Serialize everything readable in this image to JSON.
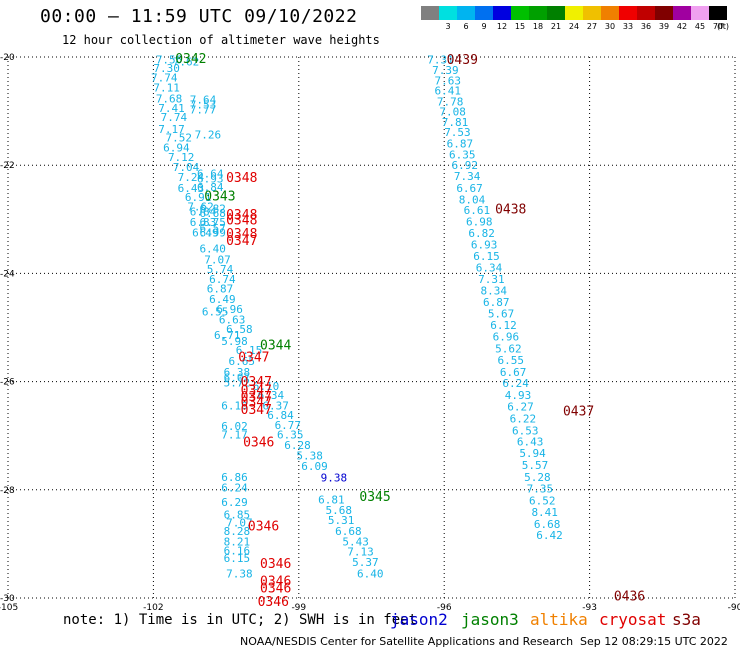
{
  "header": {
    "title": "00:00 – 11:59 UTC 09/10/2022",
    "subtitle": "12 hour collection of altimeter wave heights"
  },
  "legend": {
    "unit": "(ft)",
    "bins": [
      {
        "label": "",
        "color": "#808080"
      },
      {
        "label": "3",
        "color": "#00e0e0"
      },
      {
        "label": "6",
        "color": "#00b4f0"
      },
      {
        "label": "9",
        "color": "#0070f0"
      },
      {
        "label": "12",
        "color": "#0000e0"
      },
      {
        "label": "15",
        "color": "#00c000"
      },
      {
        "label": "18",
        "color": "#00a000"
      },
      {
        "label": "21",
        "color": "#008000"
      },
      {
        "label": "24",
        "color": "#f0f000"
      },
      {
        "label": "27",
        "color": "#f0c000"
      },
      {
        "label": "30",
        "color": "#f08000"
      },
      {
        "label": "33",
        "color": "#f00000"
      },
      {
        "label": "36",
        "color": "#c00000"
      },
      {
        "label": "39",
        "color": "#800000"
      },
      {
        "label": "42",
        "color": "#a000a0"
      },
      {
        "label": "45",
        "color": "#f0a0f0"
      },
      {
        "label": "70",
        "color": "#000000"
      }
    ]
  },
  "footer": {
    "note": "note: 1) Time is in UTC; 2) SWH is in feet",
    "satellites": [
      {
        "name": "jason2",
        "color": "#0000d0"
      },
      {
        "name": "jason3",
        "color": "#008000"
      },
      {
        "name": "altika",
        "color": "#f08000"
      },
      {
        "name": "cryosat",
        "color": "#e00000"
      },
      {
        "name": "s3a",
        "color": "#800000"
      }
    ],
    "credit": "NOAA/NESDIS Center for Satellite Applications and Research",
    "timestamp": "Sep 12 08:29:15 UTC 2022"
  },
  "chart_data": {
    "type": "scatter",
    "xlim": [
      -105,
      -90
    ],
    "ylim": [
      -30,
      -20
    ],
    "xticks": [
      -105,
      -102,
      -99,
      -96,
      -93,
      -90
    ],
    "xtick_labels": [
      "-105",
      "-102",
      "-99",
      "-96",
      "-93",
      "-90"
    ],
    "yticks": [
      -20,
      -22,
      -24,
      -26,
      -28,
      -30
    ],
    "ytick_labels": [
      "-20",
      "-22",
      "-24",
      "-26",
      "-28",
      "-30"
    ],
    "grid": true,
    "colors": {
      "swh": "#18b4e6",
      "s3a": "#800000",
      "cryosat": "#e00000",
      "jason3": "#008000",
      "jason2": "#0000d0"
    },
    "tracks": [
      {
        "name": "track-left",
        "color": "#18b4e6",
        "points": [
          {
            "lon": -101.95,
            "lat": -20.05,
            "v": "7.56"
          },
          {
            "lon": -101.6,
            "lat": -20.08,
            "v": "7.62"
          },
          {
            "lon": -102.0,
            "lat": -20.2,
            "v": "7.30"
          },
          {
            "lon": -102.05,
            "lat": -20.38,
            "v": "7.74"
          },
          {
            "lon": -102.0,
            "lat": -20.56,
            "v": "7.11"
          },
          {
            "lon": -101.95,
            "lat": -20.77,
            "v": "7.68"
          },
          {
            "lon": -101.9,
            "lat": -20.94,
            "v": "7.41"
          },
          {
            "lon": -101.85,
            "lat": -21.11,
            "v": "7.74"
          },
          {
            "lon": -101.9,
            "lat": -21.33,
            "v": "7.17"
          },
          {
            "lon": -101.75,
            "lat": -21.49,
            "v": "7.52"
          },
          {
            "lon": -101.8,
            "lat": -21.67,
            "v": "6.94"
          },
          {
            "lon": -101.7,
            "lat": -21.85,
            "v": "7.12"
          },
          {
            "lon": -101.6,
            "lat": -22.03,
            "v": "7.04"
          },
          {
            "lon": -101.5,
            "lat": -22.22,
            "v": "7.24"
          },
          {
            "lon": -101.5,
            "lat": -22.42,
            "v": "6.43"
          },
          {
            "lon": -101.35,
            "lat": -22.59,
            "v": "6.91"
          },
          {
            "lon": -101.3,
            "lat": -22.76,
            "v": "7.62"
          },
          {
            "lon": -101.25,
            "lat": -22.86,
            "v": "6.84"
          },
          {
            "lon": -101.25,
            "lat": -23.05,
            "v": "6.83"
          },
          {
            "lon": -101.2,
            "lat": -23.24,
            "v": "6.49"
          },
          {
            "lon": -101.05,
            "lat": -23.54,
            "v": "6.40"
          },
          {
            "lon": -100.95,
            "lat": -23.74,
            "v": "7.07"
          },
          {
            "lon": -100.9,
            "lat": -23.92,
            "v": "5.74"
          },
          {
            "lon": -100.85,
            "lat": -24.1,
            "v": "6.74"
          },
          {
            "lon": -100.9,
            "lat": -24.28,
            "v": "6.87"
          },
          {
            "lon": -100.85,
            "lat": -24.47,
            "v": "6.49"
          },
          {
            "lon": -100.7,
            "lat": -24.66,
            "v": "6.96"
          },
          {
            "lon": -100.65,
            "lat": -24.85,
            "v": "6.63"
          },
          {
            "lon": -100.5,
            "lat": -25.03,
            "v": "6.58"
          },
          {
            "lon": -100.75,
            "lat": -25.14,
            "v": "6.71"
          },
          {
            "lon": -100.6,
            "lat": -25.25,
            "v": "5.98"
          },
          {
            "lon": -100.3,
            "lat": -25.42,
            "v": "6.15"
          },
          {
            "lon": -100.45,
            "lat": -25.62,
            "v": "6.65"
          },
          {
            "lon": -100.55,
            "lat": -25.82,
            "v": "6.38"
          },
          {
            "lon": -100.55,
            "lat": -25.92,
            "v": "6.07"
          },
          {
            "lon": -100.55,
            "lat": -26.02,
            "v": "5.72"
          },
          {
            "lon": -99.95,
            "lat": -26.08,
            "v": "6.10"
          },
          {
            "lon": -99.85,
            "lat": -26.25,
            "v": "6.34"
          },
          {
            "lon": -99.75,
            "lat": -26.44,
            "v": "6.37"
          },
          {
            "lon": -99.65,
            "lat": -26.62,
            "v": "6.84"
          },
          {
            "lon": -100.6,
            "lat": -26.44,
            "v": "6.10"
          },
          {
            "lon": -99.5,
            "lat": -26.8,
            "v": "6.77"
          },
          {
            "lon": -100.6,
            "lat": -26.82,
            "v": "6.02"
          },
          {
            "lon": -100.6,
            "lat": -26.98,
            "v": "7.17"
          },
          {
            "lon": -99.45,
            "lat": -26.98,
            "v": "6.35"
          },
          {
            "lon": -99.3,
            "lat": -27.17,
            "v": "6.28"
          },
          {
            "lon": -99.05,
            "lat": -27.37,
            "v": "5.38"
          },
          {
            "lon": -98.95,
            "lat": -27.56,
            "v": "6.09"
          },
          {
            "lon": -100.6,
            "lat": -27.76,
            "v": "6.86"
          },
          {
            "lon": -100.6,
            "lat": -27.96,
            "v": "6.24"
          },
          {
            "lon": -100.6,
            "lat": -28.23,
            "v": "6.29"
          },
          {
            "lon": -98.6,
            "lat": -28.18,
            "v": "6.81"
          },
          {
            "lon": -98.45,
            "lat": -28.37,
            "v": "5.68"
          },
          {
            "lon": -98.4,
            "lat": -28.56,
            "v": "5.31"
          },
          {
            "lon": -100.55,
            "lat": -28.46,
            "v": "6.85"
          },
          {
            "lon": -100.5,
            "lat": -28.6,
            "v": "7.07"
          },
          {
            "lon": -100.55,
            "lat": -28.76,
            "v": "8.28"
          },
          {
            "lon": -98.25,
            "lat": -28.76,
            "v": "6.68"
          },
          {
            "lon": -100.55,
            "lat": -28.96,
            "v": "8.21"
          },
          {
            "lon": -98.1,
            "lat": -28.96,
            "v": "5.43"
          },
          {
            "lon": -100.55,
            "lat": -29.12,
            "v": "6.16"
          },
          {
            "lon": -98.0,
            "lat": -29.14,
            "v": "7.13"
          },
          {
            "lon": -100.55,
            "lat": -29.26,
            "v": "6.15"
          },
          {
            "lon": -97.9,
            "lat": -29.33,
            "v": "5.37"
          },
          {
            "lon": -100.5,
            "lat": -29.55,
            "v": "7.38"
          },
          {
            "lon": -97.8,
            "lat": -29.55,
            "v": "6.40"
          }
        ]
      },
      {
        "name": "track-mid",
        "color": "#18b4e6",
        "points": [
          {
            "lon": -101.25,
            "lat": -20.79,
            "v": "7.64"
          },
          {
            "lon": -101.25,
            "lat": -20.88,
            "v": "7.53"
          },
          {
            "lon": -101.25,
            "lat": -20.97,
            "v": "7.77"
          },
          {
            "lon": -101.15,
            "lat": -21.43,
            "v": "7.26"
          },
          {
            "lon": -101.1,
            "lat": -22.15,
            "v": "6.64"
          },
          {
            "lon": -101.1,
            "lat": -22.25,
            "v": "6.93"
          },
          {
            "lon": -101.1,
            "lat": -22.4,
            "v": "6.84"
          },
          {
            "lon": -101.05,
            "lat": -22.8,
            "v": "6.82"
          },
          {
            "lon": -101.05,
            "lat": -22.88,
            "v": "6.68"
          },
          {
            "lon": -101.05,
            "lat": -23.05,
            "v": "6.75"
          },
          {
            "lon": -101.05,
            "lat": -23.16,
            "v": "6.57"
          },
          {
            "lon": -101.05,
            "lat": -23.24,
            "v": "6.99"
          },
          {
            "lon": -101.0,
            "lat": -24.7,
            "v": "6.55"
          }
        ]
      },
      {
        "name": "track-right",
        "color": "#18b4e6",
        "points": [
          {
            "lon": -96.35,
            "lat": -20.05,
            "v": "7.31"
          },
          {
            "lon": -96.25,
            "lat": -20.24,
            "v": "7.39"
          },
          {
            "lon": -96.2,
            "lat": -20.43,
            "v": "7.63"
          },
          {
            "lon": -96.2,
            "lat": -20.62,
            "v": "6.41"
          },
          {
            "lon": -96.15,
            "lat": -20.82,
            "v": "7.78"
          },
          {
            "lon": -96.1,
            "lat": -21.01,
            "v": "7.08"
          },
          {
            "lon": -96.05,
            "lat": -21.2,
            "v": "7.81"
          },
          {
            "lon": -96.0,
            "lat": -21.39,
            "v": "7.53"
          },
          {
            "lon": -95.95,
            "lat": -21.6,
            "v": "6.87"
          },
          {
            "lon": -95.9,
            "lat": -21.8,
            "v": "6.35"
          },
          {
            "lon": -95.85,
            "lat": -22.0,
            "v": "6.92"
          },
          {
            "lon": -95.8,
            "lat": -22.2,
            "v": "7.34"
          },
          {
            "lon": -95.75,
            "lat": -22.42,
            "v": "6.67"
          },
          {
            "lon": -95.7,
            "lat": -22.63,
            "v": "8.04"
          },
          {
            "lon": -95.6,
            "lat": -22.83,
            "v": "6.61"
          },
          {
            "lon": -95.55,
            "lat": -23.04,
            "v": "6.98"
          },
          {
            "lon": -95.5,
            "lat": -23.25,
            "v": "6.82"
          },
          {
            "lon": -95.45,
            "lat": -23.47,
            "v": "6.93"
          },
          {
            "lon": -95.4,
            "lat": -23.68,
            "v": "6.15"
          },
          {
            "lon": -95.35,
            "lat": -23.89,
            "v": "6.34"
          },
          {
            "lon": -95.3,
            "lat": -24.1,
            "v": "7.31"
          },
          {
            "lon": -95.25,
            "lat": -24.32,
            "v": "8.34"
          },
          {
            "lon": -95.2,
            "lat": -24.53,
            "v": "6.87"
          },
          {
            "lon": -95.1,
            "lat": -24.74,
            "v": "5.67"
          },
          {
            "lon": -95.05,
            "lat": -24.95,
            "v": "6.12"
          },
          {
            "lon": -95.0,
            "lat": -25.17,
            "v": "6.96"
          },
          {
            "lon": -94.95,
            "lat": -25.39,
            "v": "5.62"
          },
          {
            "lon": -94.9,
            "lat": -25.6,
            "v": "6.55"
          },
          {
            "lon": -94.85,
            "lat": -25.82,
            "v": "6.67"
          },
          {
            "lon": -94.8,
            "lat": -26.03,
            "v": "6.24"
          },
          {
            "lon": -94.75,
            "lat": -26.25,
            "v": "4.93"
          },
          {
            "lon": -94.7,
            "lat": -26.46,
            "v": "6.27"
          },
          {
            "lon": -94.65,
            "lat": -26.68,
            "v": "6.22"
          },
          {
            "lon": -94.6,
            "lat": -26.9,
            "v": "6.53"
          },
          {
            "lon": -94.5,
            "lat": -27.11,
            "v": "6.43"
          },
          {
            "lon": -94.45,
            "lat": -27.32,
            "v": "5.94"
          },
          {
            "lon": -94.4,
            "lat": -27.54,
            "v": "5.57"
          },
          {
            "lon": -94.35,
            "lat": -27.76,
            "v": "5.28"
          },
          {
            "lon": -94.3,
            "lat": -27.98,
            "v": "7.35"
          },
          {
            "lon": -94.25,
            "lat": -28.2,
            "v": "6.52"
          },
          {
            "lon": -94.2,
            "lat": -28.41,
            "v": "8.41"
          },
          {
            "lon": -94.15,
            "lat": -28.63,
            "v": "6.68"
          },
          {
            "lon": -94.1,
            "lat": -28.84,
            "v": "6.42"
          }
        ]
      }
    ],
    "jason2_points": [
      {
        "lon": -98.55,
        "lat": -27.77,
        "v": "9.38"
      }
    ],
    "time_labels": [
      {
        "lon": -101.55,
        "lat": -20.02,
        "t": "0342",
        "sat": "jason3"
      },
      {
        "lon": -95.95,
        "lat": -20.04,
        "t": "0439",
        "sat": "s3a"
      },
      {
        "lon": -100.5,
        "lat": -22.22,
        "t": "0348",
        "sat": "cryosat"
      },
      {
        "lon": -100.95,
        "lat": -22.56,
        "t": "0343",
        "sat": "jason3"
      },
      {
        "lon": -94.95,
        "lat": -22.8,
        "t": "0438",
        "sat": "s3a"
      },
      {
        "lon": -100.5,
        "lat": -22.9,
        "t": "0348",
        "sat": "cryosat"
      },
      {
        "lon": -100.5,
        "lat": -23.0,
        "t": "0348",
        "sat": "cryosat"
      },
      {
        "lon": -100.5,
        "lat": -23.25,
        "t": "0348",
        "sat": "cryosat"
      },
      {
        "lon": -100.5,
        "lat": -23.38,
        "t": "0347",
        "sat": "cryosat"
      },
      {
        "lon": -99.8,
        "lat": -25.31,
        "t": "0344",
        "sat": "jason3"
      },
      {
        "lon": -100.25,
        "lat": -25.54,
        "t": "0347",
        "sat": "cryosat"
      },
      {
        "lon": -100.2,
        "lat": -25.99,
        "t": "0347",
        "sat": "cryosat"
      },
      {
        "lon": -100.2,
        "lat": -26.15,
        "t": "0347",
        "sat": "cryosat"
      },
      {
        "lon": -100.2,
        "lat": -26.27,
        "t": "0347",
        "sat": "cryosat"
      },
      {
        "lon": -100.2,
        "lat": -26.37,
        "t": "0347",
        "sat": "cryosat"
      },
      {
        "lon": -100.2,
        "lat": -26.51,
        "t": "0347",
        "sat": "cryosat"
      },
      {
        "lon": -93.55,
        "lat": -26.53,
        "t": "0437",
        "sat": "s3a"
      },
      {
        "lon": -100.15,
        "lat": -27.11,
        "t": "0346",
        "sat": "cryosat"
      },
      {
        "lon": -97.75,
        "lat": -28.11,
        "t": "0345",
        "sat": "jason3"
      },
      {
        "lon": -100.05,
        "lat": -28.66,
        "t": "0346",
        "sat": "cryosat"
      },
      {
        "lon": -99.8,
        "lat": -29.35,
        "t": "0346",
        "sat": "cryosat"
      },
      {
        "lon": -99.8,
        "lat": -29.68,
        "t": "0346",
        "sat": "cryosat"
      },
      {
        "lon": -99.8,
        "lat": -29.81,
        "t": "0346",
        "sat": "cryosat"
      },
      {
        "lon": -99.85,
        "lat": -30.06,
        "t": "0346",
        "sat": "cryosat"
      },
      {
        "lon": -92.5,
        "lat": -29.95,
        "t": "0436",
        "sat": "s3a"
      }
    ]
  }
}
